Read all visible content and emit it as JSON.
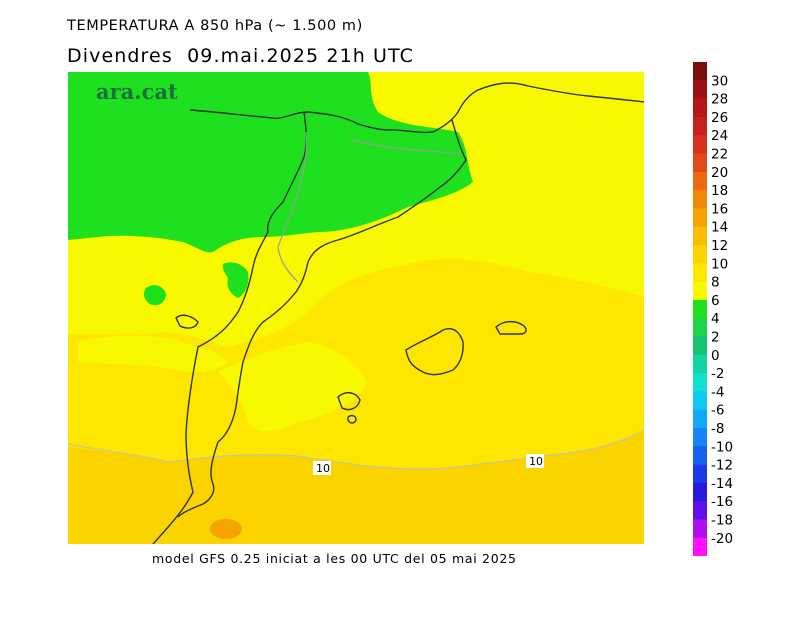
{
  "header": {
    "title": "TEMPERATURA A 850 hPa (~ 1.500 m)",
    "subtitle": "Divendres  09.mai.2025 21h UTC"
  },
  "footer": {
    "text": "model GFS 0.25 iniciat a les 00 UTC del 05 mai 2025"
  },
  "brand": {
    "text": "ara.cat",
    "color": "#1f6f3f"
  },
  "map": {
    "contour_labels": [
      "10",
      "10"
    ],
    "land_border_color": "#333333",
    "river_color": "#9a9a9a"
  },
  "legend": {
    "labels": [
      "30",
      "28",
      "26",
      "24",
      "22",
      "20",
      "18",
      "16",
      "14",
      "12",
      "10",
      "8",
      "6",
      "4",
      "2",
      "0",
      "-2",
      "-4",
      "-6",
      "-8",
      "-10",
      "-12",
      "-14",
      "-16",
      "-18",
      "-20"
    ],
    "colors": [
      "#7a0d0d",
      "#9c1212",
      "#b41818",
      "#c72020",
      "#d8301f",
      "#e14a1a",
      "#e96a10",
      "#f08808",
      "#f6a300",
      "#f8bf00",
      "#fbd400",
      "#fde600",
      "#f8f800",
      "#1ee01e",
      "#1ed24a",
      "#16c470",
      "#12d4a2",
      "#10e0d0",
      "#10c8f0",
      "#10a8f8",
      "#1484f8",
      "#1860f0",
      "#1a3ae8",
      "#2a18e0",
      "#6010e8",
      "#b010f0",
      "#ff10ff"
    ]
  }
}
